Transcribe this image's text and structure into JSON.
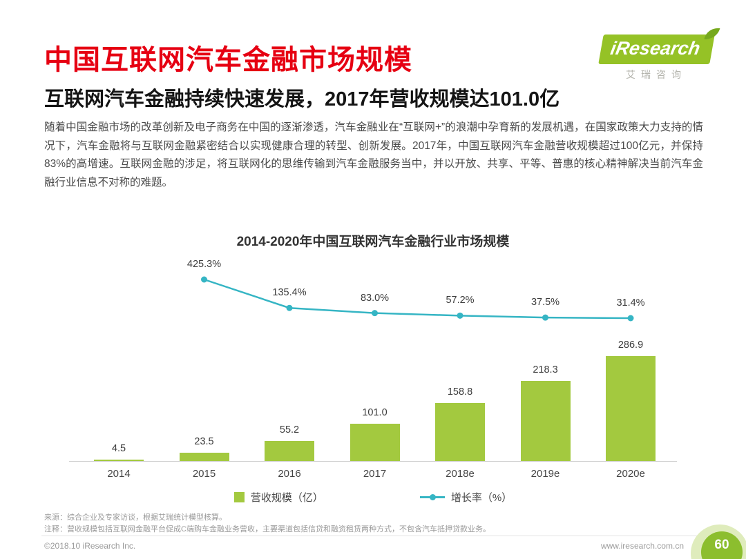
{
  "header": {
    "title": "中国互联网汽车金融市场规模",
    "logo": {
      "brand": "iResearch",
      "brand_cn": "艾瑞咨询"
    },
    "subtitle": "互联网汽车金融持续快速发展，2017年营收规模达101.0亿",
    "paragraph": "随着中国金融市场的改革创新及电子商务在中国的逐渐渗透，汽车金融业在“互联网+”的浪潮中孕育新的发展机遇，在国家政策大力支持的情况下，汽车金融将与互联网金融紧密结合以实现健康合理的转型、创新发展。2017年，中国互联网汽车金融营收规模超过100亿元，并保持83%的高增速。互联网金融的涉足，将互联网化的思维传输到汽车金融服务当中，并以开放、共享、平等、普惠的核心精神解决当前汽车金融行业信息不对称的难题。"
  },
  "chart_data": {
    "type": "bar+line",
    "title": "2014-2020年中国互联网汽车金融行业市场规模",
    "categories": [
      "2014",
      "2015",
      "2016",
      "2017",
      "2018e",
      "2019e",
      "2020e"
    ],
    "series": [
      {
        "name": "营收规模（亿）",
        "type": "bar",
        "color": "#a3c93f",
        "values": [
          4.5,
          23.5,
          55.2,
          101.0,
          158.8,
          218.3,
          286.9
        ],
        "labels": [
          "4.5",
          "23.5",
          "55.2",
          "101.0",
          "158.8",
          "218.3",
          "286.9"
        ]
      },
      {
        "name": "增长率（%）",
        "type": "line",
        "color": "#35b5c4",
        "values": [
          null,
          425.3,
          135.4,
          83.0,
          57.2,
          37.5,
          31.4
        ],
        "labels": [
          null,
          "425.3%",
          "135.4%",
          "83.0%",
          "57.2%",
          "37.5%",
          "31.4%"
        ]
      }
    ],
    "legend_position": "bottom",
    "grid": false,
    "y_axis_visible": false
  },
  "footer": {
    "source": "来源：综合企业及专家访谈，根据艾瑞统计模型核算。",
    "note": "注释：营收规模包括互联网金融平台促成C端购车金融业务营收，主要渠道包括信贷和融资租赁两种方式，不包含汽车抵押贷款业务。",
    "copyright": "©2018.10 iResearch Inc.",
    "website": "www.iresearch.com.cn",
    "page_number": "60"
  },
  "colors": {
    "accent_red": "#e60012",
    "brand_green": "#95c226",
    "bar_green": "#a3c93f",
    "line_teal": "#35b5c4"
  }
}
